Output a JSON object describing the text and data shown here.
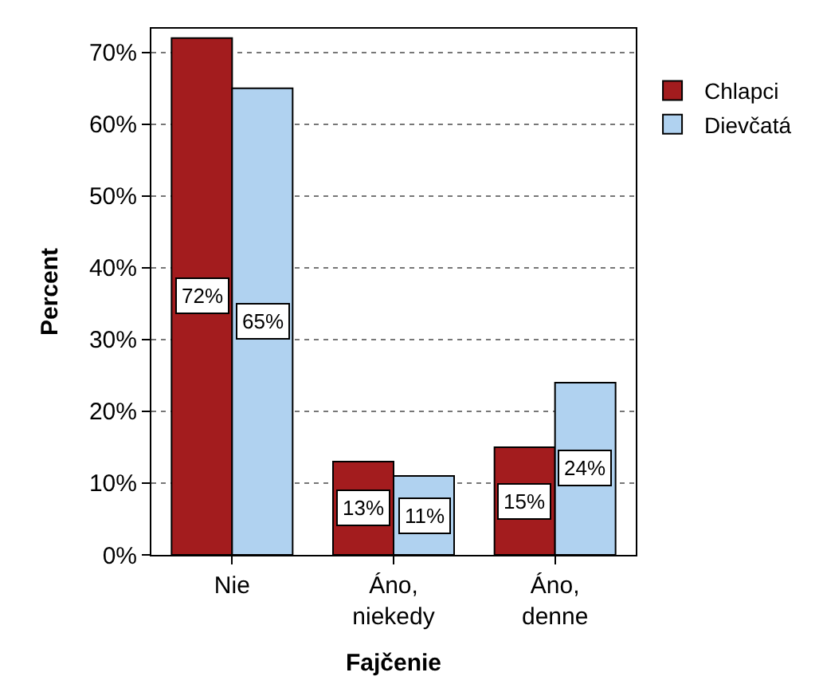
{
  "chart_data": {
    "type": "bar",
    "xlabel": "Fajčenie",
    "ylabel": "Percent",
    "categories": [
      "Nie",
      "Áno,\nniekedy",
      "Áno,\ndenne"
    ],
    "series": [
      {
        "name": "Chlapci",
        "color": "#a31c1e",
        "values": [
          72,
          13,
          15
        ],
        "value_labels": [
          "72%",
          "13%",
          "15%"
        ]
      },
      {
        "name": "Dievčatá",
        "color": "#b0d2f0",
        "values": [
          65,
          11,
          24
        ],
        "value_labels": [
          "65%",
          "11%",
          "24%"
        ]
      }
    ],
    "ylim": [
      0,
      73.3
    ],
    "yticks": [
      {
        "value": 0,
        "label": "0%"
      },
      {
        "value": 10,
        "label": "10%"
      },
      {
        "value": 20,
        "label": "20%"
      },
      {
        "value": 30,
        "label": "30%"
      },
      {
        "value": 40,
        "label": "40%"
      },
      {
        "value": 50,
        "label": "50%"
      },
      {
        "value": 60,
        "label": "60%"
      },
      {
        "value": 70,
        "label": "70%"
      }
    ],
    "grid": "y",
    "legend": "top right"
  }
}
